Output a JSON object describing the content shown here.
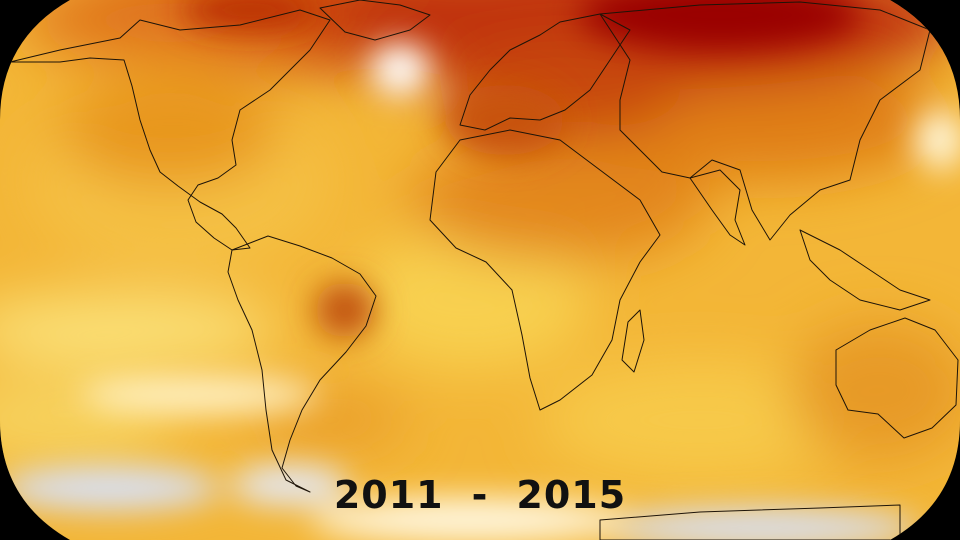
{
  "period": {
    "start_year": "2011",
    "separator": "-",
    "end_year": "2015"
  },
  "colors": {
    "background": "#000000",
    "base_warm": "#f3b637",
    "hot": "#b41600",
    "very_hot": "#9a0000",
    "warm_orange": "#e3871d",
    "neutral": "#fffbe8",
    "cool": "#d8e0f4",
    "coastline": "#1e1408"
  }
}
